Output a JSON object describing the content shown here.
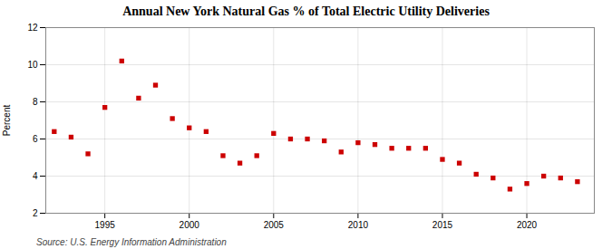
{
  "chart_data": {
    "type": "scatter",
    "title": "Annual New York Natural Gas % of Total Electric Utility Deliveries",
    "ylabel": "Percent",
    "source": "Source: U.S. Energy Information Administration",
    "x": [
      1992,
      1993,
      1994,
      1995,
      1996,
      1997,
      1998,
      1999,
      2000,
      2001,
      2002,
      2003,
      2004,
      2005,
      2006,
      2007,
      2008,
      2009,
      2010,
      2011,
      2012,
      2013,
      2014,
      2015,
      2016,
      2017,
      2018,
      2019,
      2020,
      2021,
      2022,
      2023
    ],
    "values": [
      6.4,
      6.1,
      5.2,
      7.7,
      10.2,
      8.2,
      8.9,
      7.1,
      6.6,
      6.4,
      5.1,
      4.7,
      5.1,
      6.3,
      6.0,
      6.0,
      5.9,
      5.3,
      5.8,
      5.7,
      5.5,
      5.5,
      5.5,
      4.9,
      4.7,
      4.1,
      3.9,
      3.3,
      3.6,
      4.0,
      3.9,
      3.7
    ],
    "color": "#cc0000",
    "marker": "square",
    "xlim": [
      1991.5,
      2024
    ],
    "xticks": [
      1995,
      2000,
      2005,
      2010,
      2015,
      2020
    ],
    "ylim": [
      2,
      12
    ],
    "yticks": [
      2,
      4,
      6,
      8,
      10,
      12
    ],
    "grid": true
  }
}
